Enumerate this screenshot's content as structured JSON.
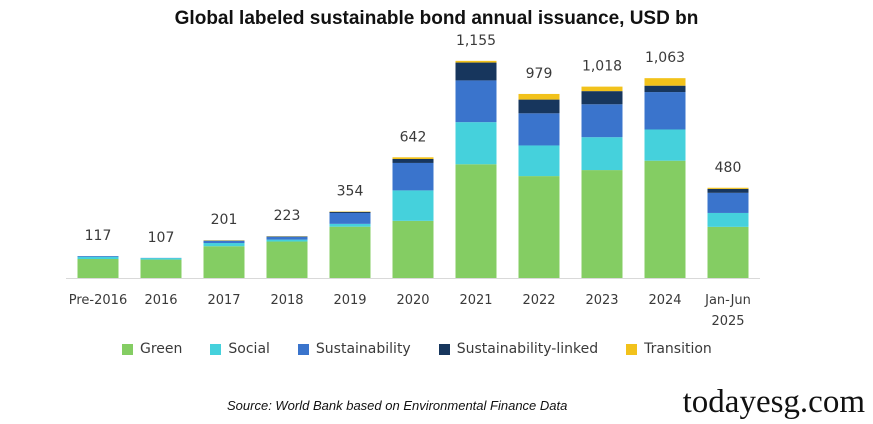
{
  "chart_data": {
    "type": "bar",
    "stacked": true,
    "title": "Global labeled sustainable bond annual issuance, USD bn",
    "xlabel": "",
    "ylabel": "",
    "ylim": [
      0,
      1250
    ],
    "grid": false,
    "legend_position": "bottom",
    "categories": [
      "Pre-2016",
      "2016",
      "2017",
      "2018",
      "2019",
      "2020",
      "2021",
      "2022",
      "2023",
      "2024",
      "Jan-Jun 2025"
    ],
    "totals": [
      "117",
      "107",
      "201",
      "223",
      "354",
      "642",
      "1,155",
      "979",
      "1,018",
      "1,063",
      "480"
    ],
    "series": [
      {
        "name": "Green",
        "color": "#84cd63",
        "values": [
          101,
          98,
          169,
          194,
          273,
          304,
          605,
          542,
          574,
          624,
          272
        ]
      },
      {
        "name": "Social",
        "color": "#45d1dc",
        "values": [
          12,
          8,
          17,
          10,
          15,
          162,
          224,
          163,
          175,
          166,
          74
        ]
      },
      {
        "name": "Sustainability",
        "color": "#3a74cc",
        "values": [
          4,
          1,
          13,
          17,
          58,
          146,
          222,
          171,
          175,
          199,
          107
        ]
      },
      {
        "name": "Sustainability-linked",
        "color": "#17365d",
        "values": [
          0,
          0,
          0,
          0,
          6,
          21,
          95,
          73,
          70,
          34,
          21
        ]
      },
      {
        "name": "Transition",
        "color": "#f2c21b",
        "values": [
          0,
          0,
          2,
          2,
          2,
          9,
          9,
          30,
          24,
          40,
          6
        ]
      }
    ]
  },
  "source_note": "Source: World Bank based on Environmental Finance Data",
  "watermark": "todayesg.com"
}
